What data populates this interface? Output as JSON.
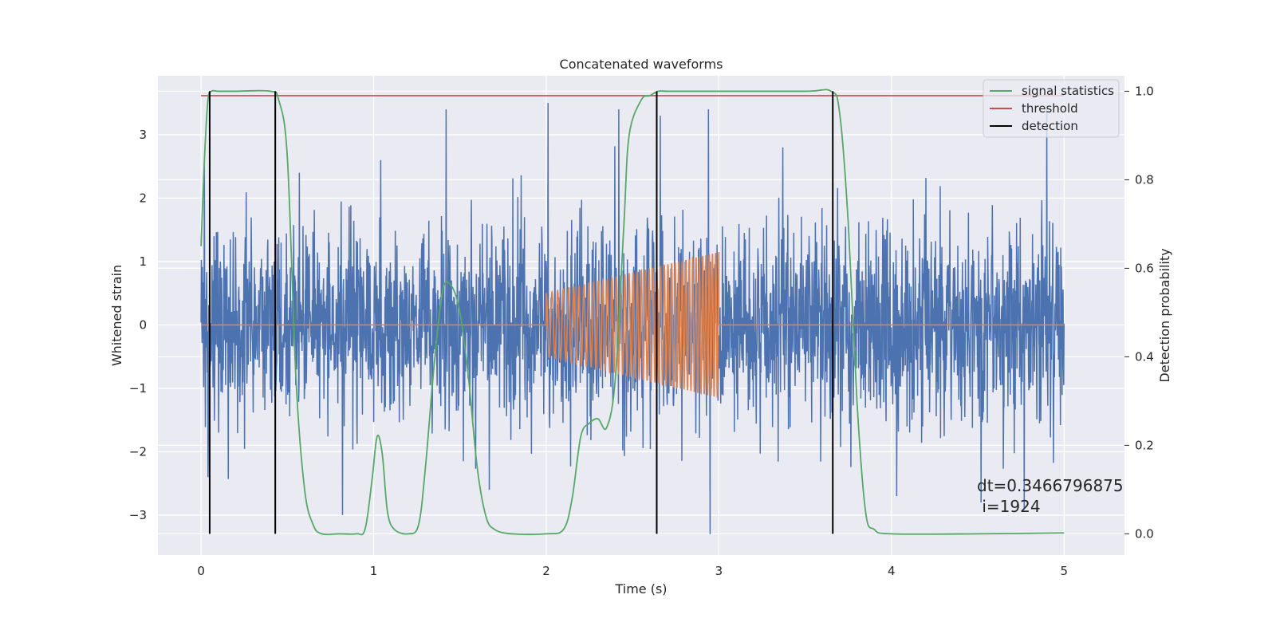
{
  "chart_data": {
    "type": "line",
    "title": "Concatenated waveforms",
    "xlabel": "Time (s)",
    "ylabel": "Whitened strain",
    "ylabel_right": "Detection probability",
    "xlim": [
      -0.25,
      5.35
    ],
    "ylim": [
      -3.63,
      3.93
    ],
    "ylim_right": [
      -0.048,
      1.035
    ],
    "x_ticks": [
      0,
      1,
      2,
      3,
      4,
      5
    ],
    "x_tick_labels": [
      "0",
      "1",
      "2",
      "3",
      "4",
      "5"
    ],
    "y_ticks": [
      -3,
      -2,
      -1,
      0,
      1,
      2,
      3
    ],
    "y_tick_labels": [
      "−3",
      "−2",
      "−1",
      "0",
      "1",
      "2",
      "3"
    ],
    "y_right_ticks": [
      0.0,
      0.2,
      0.4,
      0.6,
      0.8,
      1.0
    ],
    "y_right_tick_labels": [
      "0.0",
      "0.2",
      "0.4",
      "0.6",
      "0.8",
      "1.0"
    ],
    "grid": true,
    "legend_position": "top-right",
    "background": "#eaeaf2",
    "series": [
      {
        "name": "",
        "kind": "noise",
        "axis": "left",
        "color": "#4c72b0",
        "x_range": [
          0,
          5
        ],
        "typical_amplitude": 0.75,
        "peak_values": [
          {
            "x": 0.02,
            "y": 2.6
          },
          {
            "x": 0.04,
            "y": -2.4
          },
          {
            "x": 0.82,
            "y": -3.0
          },
          {
            "x": 0.57,
            "y": 2.4
          },
          {
            "x": 0.82,
            "y": 2.5
          },
          {
            "x": 1.04,
            "y": 2.6
          },
          {
            "x": 1.42,
            "y": 3.4
          },
          {
            "x": 1.67,
            "y": -2.6
          },
          {
            "x": 2.01,
            "y": 3.5
          },
          {
            "x": 2.42,
            "y": 3.4
          },
          {
            "x": 2.66,
            "y": 3.3
          },
          {
            "x": 2.94,
            "y": 3.4
          },
          {
            "x": 2.95,
            "y": -3.3
          },
          {
            "x": 3.37,
            "y": 2.8
          },
          {
            "x": 4.03,
            "y": -2.7
          },
          {
            "x": 4.52,
            "y": -2.8
          },
          {
            "x": 4.77,
            "y": -2.9
          },
          {
            "x": 4.9,
            "y": 3.4
          }
        ]
      },
      {
        "name": "",
        "kind": "chirp",
        "axis": "left",
        "color": "#dd8452",
        "flat_value": 0,
        "chirp_start": 2.0,
        "chirp_end": 3.0,
        "amplitude_start": 0.5,
        "amplitude_end": 1.15,
        "cycles": 42
      },
      {
        "name": "signal statistics",
        "axis": "right",
        "color": "#55a868",
        "x": [
          0.0,
          0.02,
          0.04,
          0.06,
          0.1,
          0.2,
          0.4,
          0.45,
          0.5,
          0.55,
          0.6,
          0.65,
          0.7,
          0.8,
          0.9,
          0.95,
          0.99,
          1.02,
          1.05,
          1.08,
          1.12,
          1.2,
          1.26,
          1.3,
          1.35,
          1.4,
          1.45,
          1.5,
          1.55,
          1.6,
          1.65,
          1.7,
          1.8,
          2.0,
          2.1,
          2.15,
          2.2,
          2.25,
          2.3,
          2.35,
          2.4,
          2.45,
          2.48,
          2.55,
          2.6,
          2.65,
          2.7,
          2.8,
          3.0,
          3.5,
          3.65,
          3.7,
          3.75,
          3.8,
          3.85,
          3.9,
          4.0,
          4.5,
          5.0
        ],
        "values": [
          0.65,
          0.85,
          0.98,
          1.0,
          1.0,
          1.0,
          1.0,
          0.98,
          0.85,
          0.35,
          0.1,
          0.02,
          0.0,
          0.0,
          0.0,
          0.01,
          0.12,
          0.22,
          0.18,
          0.05,
          0.01,
          0.0,
          0.02,
          0.15,
          0.38,
          0.55,
          0.56,
          0.5,
          0.35,
          0.15,
          0.04,
          0.01,
          0.0,
          0.0,
          0.01,
          0.08,
          0.22,
          0.25,
          0.26,
          0.24,
          0.35,
          0.7,
          0.9,
          0.98,
          0.99,
          1.0,
          1.0,
          1.0,
          1.0,
          1.0,
          1.0,
          0.95,
          0.7,
          0.3,
          0.05,
          0.01,
          0.0,
          0.0,
          0.002
        ]
      },
      {
        "name": "threshold",
        "axis": "right",
        "color": "#c44e52",
        "x": [
          0,
          5
        ],
        "values": [
          0.99,
          0.99
        ]
      },
      {
        "name": "detection",
        "axis": "right",
        "color": "#000000",
        "detection_times": [
          0.05,
          0.43,
          2.64,
          3.66
        ],
        "y_range": [
          0,
          1
        ]
      }
    ],
    "annotation": [
      "dt=0.3466796875",
      " i=1924"
    ]
  }
}
